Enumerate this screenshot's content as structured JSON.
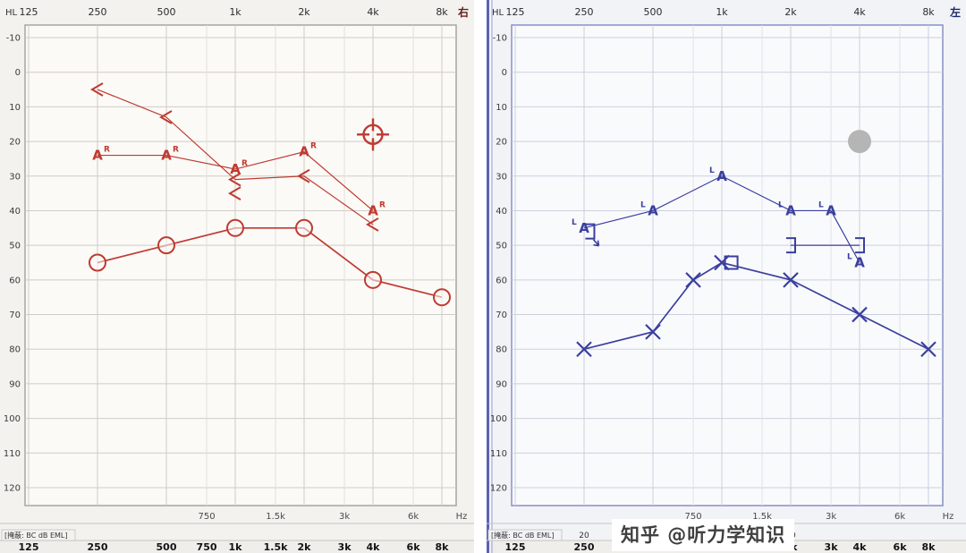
{
  "watermark": "知乎 @听力学知识",
  "chart_data": [
    {
      "type": "scatter",
      "chart_kind": "audiogram",
      "ear": "right",
      "corner_label": "HL",
      "side_label": "右",
      "unit_label": "Hz",
      "masking_label": "[掩蔽: BC dB EML]",
      "color": "#bf3a31",
      "side_label_color": "#6b1d18",
      "border_color": "#a6a4a0",
      "grid_major": "#cfccc6",
      "grid_minor": "#e2dfd9",
      "chart_bg": "#fbfaf7",
      "panel_bg": "#f3f2ef",
      "left_edge_color": null,
      "ylim": [
        -10,
        120
      ],
      "y_ticks": [
        -10,
        0,
        10,
        20,
        30,
        40,
        50,
        60,
        70,
        80,
        90,
        100,
        110,
        120
      ],
      "x_ticks_top": [
        {
          "f": 125,
          "t": "125"
        },
        {
          "f": 250,
          "t": "250"
        },
        {
          "f": 500,
          "t": "500"
        },
        {
          "f": 1000,
          "t": "1k"
        },
        {
          "f": 2000,
          "t": "2k"
        },
        {
          "f": 4000,
          "t": "4k"
        },
        {
          "f": 8000,
          "t": "8k"
        }
      ],
      "x_ticks_mid": [
        {
          "f": 750,
          "t": "750"
        },
        {
          "f": 1500,
          "t": "1.5k"
        },
        {
          "f": 3000,
          "t": "3k"
        },
        {
          "f": 6000,
          "t": "6k"
        }
      ],
      "x_ticks_bottom": [
        {
          "f": 125,
          "t": "125"
        },
        {
          "f": 250,
          "t": "250"
        },
        {
          "f": 500,
          "t": "500"
        },
        {
          "f": 750,
          "t": "750"
        },
        {
          "f": 1000,
          "t": "1k"
        },
        {
          "f": 1500,
          "t": "1.5k"
        },
        {
          "f": 2000,
          "t": "2k"
        },
        {
          "f": 3000,
          "t": "3k"
        },
        {
          "f": 4000,
          "t": "4k"
        },
        {
          "f": 6000,
          "t": "6k"
        },
        {
          "f": 8000,
          "t": "8k"
        }
      ],
      "masking_values": [],
      "series": [
        {
          "name": "bone-conduction-unmasked",
          "symbol": "<",
          "line": "solid",
          "line_width": 1.2,
          "points": [
            [
              250,
              5
            ],
            [
              500,
              13
            ],
            [
              1000,
              31
            ],
            [
              2000,
              30
            ],
            [
              4000,
              44
            ]
          ]
        },
        {
          "name": "aided-threshold",
          "symbol": "AR",
          "line": "solid",
          "line_width": 1.2,
          "points": [
            [
              250,
              24
            ],
            [
              500,
              24
            ],
            [
              1000,
              28
            ],
            [
              2000,
              23
            ],
            [
              4000,
              40
            ]
          ]
        },
        {
          "name": "air-conduction",
          "symbol": "O",
          "line": "solid",
          "line_width": 1.7,
          "points": [
            [
              250,
              55
            ],
            [
              500,
              50
            ],
            [
              1000,
              45
            ],
            [
              2000,
              45
            ],
            [
              4000,
              60
            ],
            [
              8000,
              65
            ]
          ]
        }
      ],
      "annotations": [
        {
          "symbol": "<",
          "x": 1000,
          "y": 35
        },
        {
          "symbol": "crosshair",
          "x": 4000,
          "y": 18
        }
      ]
    },
    {
      "type": "scatter",
      "chart_kind": "audiogram",
      "ear": "left",
      "corner_label": "HL",
      "side_label": "左",
      "unit_label": "Hz",
      "masking_label": "[掩蔽: BC dB EML]",
      "color": "#3a3f9e",
      "side_label_color": "#1d256b",
      "border_color": "#8890c5",
      "grid_major": "#ccd0dd",
      "grid_minor": "#dfe2ec",
      "chart_bg": "#f9fafc",
      "panel_bg": "#f2f3f6",
      "left_edge_color": "#5a62b5",
      "ylim": [
        -10,
        120
      ],
      "y_ticks": [
        -10,
        0,
        10,
        20,
        30,
        40,
        50,
        60,
        70,
        80,
        90,
        100,
        110,
        120
      ],
      "x_ticks_top": [
        {
          "f": 125,
          "t": "125"
        },
        {
          "f": 250,
          "t": "250"
        },
        {
          "f": 500,
          "t": "500"
        },
        {
          "f": 1000,
          "t": "1k"
        },
        {
          "f": 2000,
          "t": "2k"
        },
        {
          "f": 4000,
          "t": "4k"
        },
        {
          "f": 8000,
          "t": "8k"
        }
      ],
      "x_ticks_mid": [
        {
          "f": 750,
          "t": "750"
        },
        {
          "f": 1500,
          "t": "1.5k"
        },
        {
          "f": 3000,
          "t": "3k"
        },
        {
          "f": 6000,
          "t": "6k"
        }
      ],
      "x_ticks_bottom": [
        {
          "f": 125,
          "t": "125"
        },
        {
          "f": 250,
          "t": "250"
        },
        {
          "f": 500,
          "t": "500"
        },
        {
          "f": 750,
          "t": "750"
        },
        {
          "f": 1000,
          "t": "1k"
        },
        {
          "f": 1500,
          "t": "1.5k"
        },
        {
          "f": 2000,
          "t": "2k"
        },
        {
          "f": 3000,
          "t": "3k"
        },
        {
          "f": 4000,
          "t": "4k"
        },
        {
          "f": 6000,
          "t": "6k"
        },
        {
          "f": 8000,
          "t": "8k"
        }
      ],
      "masking_values": [
        {
          "f": 250,
          "t": "20"
        },
        {
          "f": 500,
          "t": "20"
        },
        {
          "f": 1000,
          "t": "20"
        },
        {
          "f": 2000,
          "t": "20"
        }
      ],
      "series": [
        {
          "name": "aided-threshold",
          "symbol": "LA",
          "line": "solid",
          "line_width": 1.2,
          "points": [
            [
              250,
              45
            ],
            [
              500,
              40
            ],
            [
              1000,
              30
            ],
            [
              2000,
              40
            ],
            [
              3000,
              40
            ],
            [
              4000,
              55
            ]
          ]
        },
        {
          "name": "bone-conduction-masked",
          "symbol": "]",
          "line": "solid",
          "line_width": 1.2,
          "points": [
            [
              2000,
              50
            ],
            [
              4000,
              50
            ]
          ]
        },
        {
          "name": "air-conduction",
          "symbol": "X",
          "line": "solid",
          "line_width": 1.7,
          "points": [
            [
              250,
              80
            ],
            [
              500,
              75
            ],
            [
              750,
              60
            ],
            [
              1000,
              55
            ],
            [
              2000,
              60
            ],
            [
              4000,
              70
            ],
            [
              8000,
              80
            ]
          ]
        }
      ],
      "annotations": [
        {
          "symbol": "square",
          "x": 1100,
          "y": 55
        },
        {
          "symbol": "bracket-noresponse",
          "x": 265,
          "y": 46
        },
        {
          "symbol": "gray-dot",
          "x": 4000,
          "y": 20
        }
      ]
    }
  ]
}
